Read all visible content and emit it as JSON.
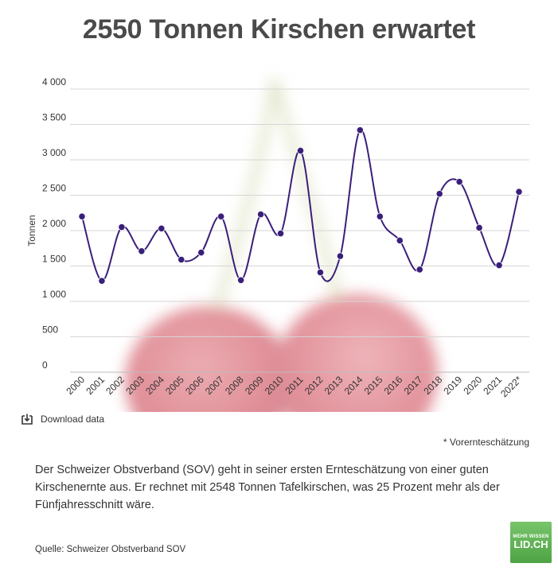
{
  "header": {
    "title": "2550 Tonnen Kirschen erwartet"
  },
  "chart_data": {
    "type": "line",
    "title": "2550 Tonnen Kirschen erwartet",
    "xlabel": "",
    "ylabel": "Tonnen",
    "ylim": [
      0,
      4000
    ],
    "yticks": [
      0,
      500,
      1000,
      1500,
      2000,
      2500,
      3000,
      3500,
      4000
    ],
    "ytick_labels": [
      "0",
      "500",
      "1 000",
      "1 500",
      "2 000",
      "2 500",
      "3 000",
      "3 500",
      "4 000"
    ],
    "categories": [
      "2000",
      "2001",
      "2002",
      "2003",
      "2004",
      "2005",
      "2006",
      "2007",
      "2008",
      "2009",
      "2010",
      "2011",
      "2012",
      "2013",
      "2014",
      "2015",
      "2016",
      "2017",
      "2018",
      "2019",
      "2020",
      "2021",
      "2022*"
    ],
    "series": [
      {
        "values": [
          2200,
          1290,
          2050,
          1710,
          2030,
          1590,
          1690,
          2200,
          1300,
          2230,
          1960,
          3130,
          1410,
          1640,
          3420,
          2200,
          1860,
          1450,
          2520,
          2690,
          2040,
          1510,
          2548
        ]
      }
    ],
    "grid": true,
    "line_color": "#3a1f7a",
    "marker_color": "#3a1f7a"
  },
  "download": {
    "label": "Download data",
    "icon": "download-icon"
  },
  "footnote": "* Vorernteschätzung",
  "description": "Der Schweizer Obstverband (SOV) geht in seiner ersten Ernteschätzung von einer guten Kirschenernte aus. Er rechnet mit 2548 Tonnen Tafelkirschen, was 25 Prozent mehr als der Fünfjahresschnitt wäre.",
  "source": "Quelle: Schweizer Obstverband SOV",
  "logo": {
    "top": "MEHR WISSEN",
    "main": "LID.CH"
  },
  "colors": {
    "background_cherry": "#c8414f",
    "accent": "#3a1f7a",
    "logo_green": "#5aae4f"
  }
}
